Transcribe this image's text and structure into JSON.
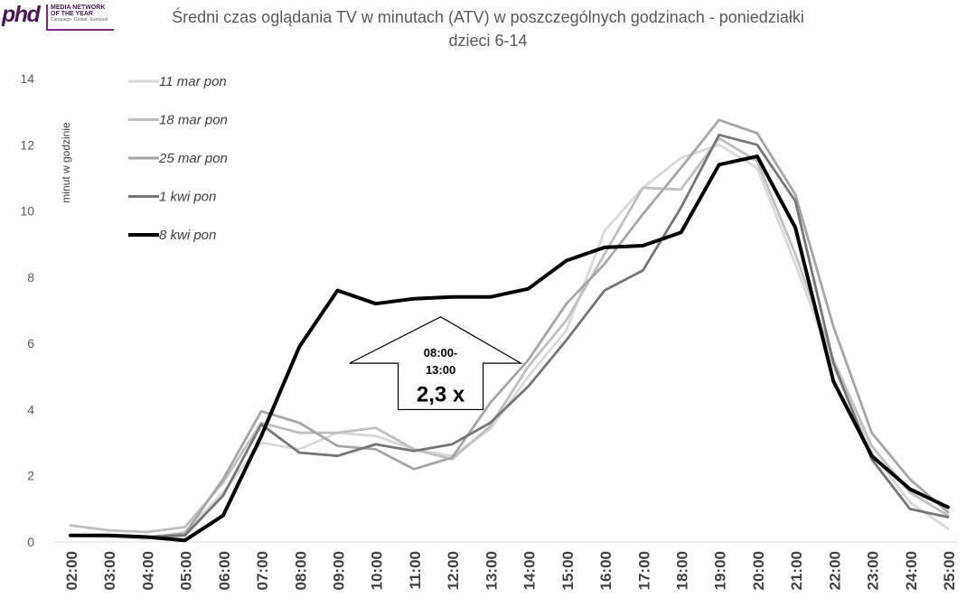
{
  "logo": {
    "mark": "phd",
    "line1": "MEDIA NETWORK",
    "line2": "OF THE YEAR",
    "line3": "Campaign- Global- Eurobest"
  },
  "header": {
    "title_line1": "Średni czas oglądania TV w minutach (ATV) w poszczególnych godzinach - poniedziałki",
    "title_line2": "dzieci 6-14"
  },
  "chart_data": {
    "type": "line",
    "title": "Średni czas oglądania TV w minutach (ATV) w poszczególnych godzinach - poniedziałki dzieci 6-14",
    "ylabel": "minut w godzinie",
    "xlabel": "",
    "ylim": [
      0,
      14
    ],
    "yticks": [
      "0",
      "2",
      "4",
      "6",
      "8",
      "10",
      "12",
      "14"
    ],
    "grid": false,
    "legend_position": "top-left",
    "categories": [
      "02:00",
      "03:00",
      "04:00",
      "05:00",
      "06:00",
      "07:00",
      "08:00",
      "09:00",
      "10:00",
      "11:00",
      "12:00",
      "13:00",
      "14:00",
      "15:00",
      "16:00",
      "17:00",
      "18:00",
      "19:00",
      "20:00",
      "21:00",
      "22:00",
      "23:00",
      "24:00",
      "25:00"
    ],
    "series": [
      {
        "name": "11 mar pon",
        "color": "#d9d9d9",
        "values": [
          0.2,
          0.15,
          0.1,
          0.3,
          1.5,
          3.0,
          2.8,
          3.3,
          3.2,
          2.8,
          2.6,
          3.4,
          5.0,
          6.4,
          9.4,
          10.7,
          11.6,
          12.0,
          11.3,
          8.4,
          5.3,
          2.7,
          1.2,
          0.4
        ]
      },
      {
        "name": "18 mar pon",
        "color": "#bfbfbf",
        "values": [
          0.5,
          0.35,
          0.3,
          0.45,
          1.8,
          3.6,
          3.3,
          3.3,
          3.45,
          2.8,
          2.5,
          3.5,
          5.3,
          6.7,
          8.7,
          10.7,
          10.65,
          12.2,
          11.5,
          8.7,
          5.5,
          2.9,
          1.5,
          0.8
        ]
      },
      {
        "name": "25 mar pon",
        "color": "#a6a6a6",
        "values": [
          0.2,
          0.2,
          0.15,
          0.25,
          1.9,
          3.95,
          3.6,
          2.9,
          2.8,
          2.2,
          2.55,
          4.2,
          5.5,
          7.2,
          8.4,
          9.9,
          11.3,
          12.75,
          12.35,
          10.5,
          6.5,
          3.3,
          1.9,
          0.9
        ]
      },
      {
        "name": "1 kwi pon",
        "color": "#767676",
        "values": [
          0.2,
          0.2,
          0.15,
          0.2,
          1.4,
          3.55,
          2.7,
          2.6,
          2.95,
          2.75,
          2.95,
          3.6,
          4.7,
          6.1,
          7.6,
          8.2,
          10.1,
          12.3,
          12.0,
          10.3,
          5.4,
          2.5,
          1.0,
          0.75
        ]
      },
      {
        "name": "8 kwi pon",
        "color": "#000000",
        "values": [
          0.2,
          0.2,
          0.15,
          0.05,
          0.8,
          3.2,
          5.9,
          7.6,
          7.2,
          7.35,
          7.4,
          7.4,
          7.65,
          8.5,
          8.9,
          8.95,
          9.35,
          11.4,
          11.65,
          9.5,
          4.85,
          2.6,
          1.6,
          1.05
        ]
      }
    ],
    "annotation": {
      "type": "up-arrow",
      "label_line1": "08:00-",
      "label_line2": "13:00",
      "value": "2,3 x"
    }
  }
}
